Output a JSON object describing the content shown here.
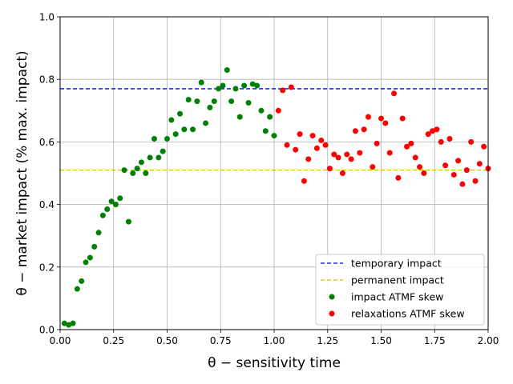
{
  "chart_data": {
    "type": "scatter",
    "xlabel": "θ − sensitivity time",
    "ylabel": "θ − market impact (% max. impact)",
    "xlim": [
      0,
      2
    ],
    "ylim": [
      0,
      1
    ],
    "grid": true,
    "legend_position": "lower-right",
    "xticks": [
      0,
      0.25,
      0.5,
      0.75,
      1.0,
      1.25,
      1.5,
      1.75,
      2.0
    ],
    "xtick_labels": [
      "0.00",
      "0.25",
      "0.50",
      "0.75",
      "1.00",
      "1.25",
      "1.50",
      "1.75",
      "2.00"
    ],
    "yticks": [
      0,
      0.2,
      0.4,
      0.6,
      0.8,
      1.0
    ],
    "ytick_labels": [
      "0.0",
      "0.2",
      "0.4",
      "0.6",
      "0.8",
      "1.0"
    ],
    "lines": [
      {
        "name": "temporary impact",
        "y": 0.77,
        "color": "#0000ff",
        "style": "dashed"
      },
      {
        "name": "permanent impact",
        "y": 0.51,
        "color": "#c8c800",
        "style": "dashed"
      }
    ],
    "series": [
      {
        "name": "impact ATMF skew",
        "color": "#008000",
        "x": [
          0.02,
          0.04,
          0.06,
          0.08,
          0.1,
          0.12,
          0.14,
          0.16,
          0.18,
          0.2,
          0.22,
          0.24,
          0.26,
          0.28,
          0.3,
          0.32,
          0.34,
          0.36,
          0.38,
          0.4,
          0.42,
          0.44,
          0.46,
          0.48,
          0.5,
          0.52,
          0.54,
          0.56,
          0.58,
          0.6,
          0.62,
          0.64,
          0.66,
          0.68,
          0.7,
          0.72,
          0.74,
          0.76,
          0.78,
          0.8,
          0.82,
          0.84,
          0.86,
          0.88,
          0.9,
          0.92,
          0.94,
          0.96,
          0.98,
          1.0
        ],
        "y": [
          0.02,
          0.015,
          0.02,
          0.13,
          0.155,
          0.215,
          0.23,
          0.265,
          0.31,
          0.365,
          0.385,
          0.41,
          0.4,
          0.42,
          0.51,
          0.345,
          0.5,
          0.515,
          0.535,
          0.5,
          0.55,
          0.61,
          0.55,
          0.57,
          0.61,
          0.67,
          0.625,
          0.69,
          0.64,
          0.735,
          0.64,
          0.73,
          0.79,
          0.66,
          0.71,
          0.73,
          0.77,
          0.78,
          0.83,
          0.73,
          0.77,
          0.68,
          0.78,
          0.725,
          0.785,
          0.78,
          0.7,
          0.635,
          0.68,
          0.62
        ]
      },
      {
        "name": "relaxations ATMF skew",
        "color": "#ff0000",
        "x": [
          1.02,
          1.04,
          1.06,
          1.08,
          1.1,
          1.12,
          1.14,
          1.16,
          1.18,
          1.2,
          1.22,
          1.24,
          1.26,
          1.28,
          1.3,
          1.32,
          1.34,
          1.36,
          1.38,
          1.4,
          1.42,
          1.44,
          1.46,
          1.48,
          1.5,
          1.52,
          1.54,
          1.56,
          1.58,
          1.6,
          1.62,
          1.64,
          1.66,
          1.68,
          1.7,
          1.72,
          1.74,
          1.76,
          1.78,
          1.8,
          1.82,
          1.84,
          1.86,
          1.88,
          1.9,
          1.92,
          1.94,
          1.96,
          1.98,
          2.0
        ],
        "y": [
          0.7,
          0.765,
          0.59,
          0.775,
          0.575,
          0.625,
          0.475,
          0.545,
          0.62,
          0.58,
          0.605,
          0.59,
          0.515,
          0.56,
          0.55,
          0.5,
          0.56,
          0.545,
          0.635,
          0.565,
          0.64,
          0.68,
          0.52,
          0.595,
          0.675,
          0.66,
          0.565,
          0.755,
          0.485,
          0.675,
          0.585,
          0.595,
          0.55,
          0.52,
          0.5,
          0.625,
          0.635,
          0.64,
          0.6,
          0.525,
          0.61,
          0.495,
          0.54,
          0.465,
          0.51,
          0.6,
          0.475,
          0.53,
          0.585,
          0.515
        ]
      }
    ]
  }
}
